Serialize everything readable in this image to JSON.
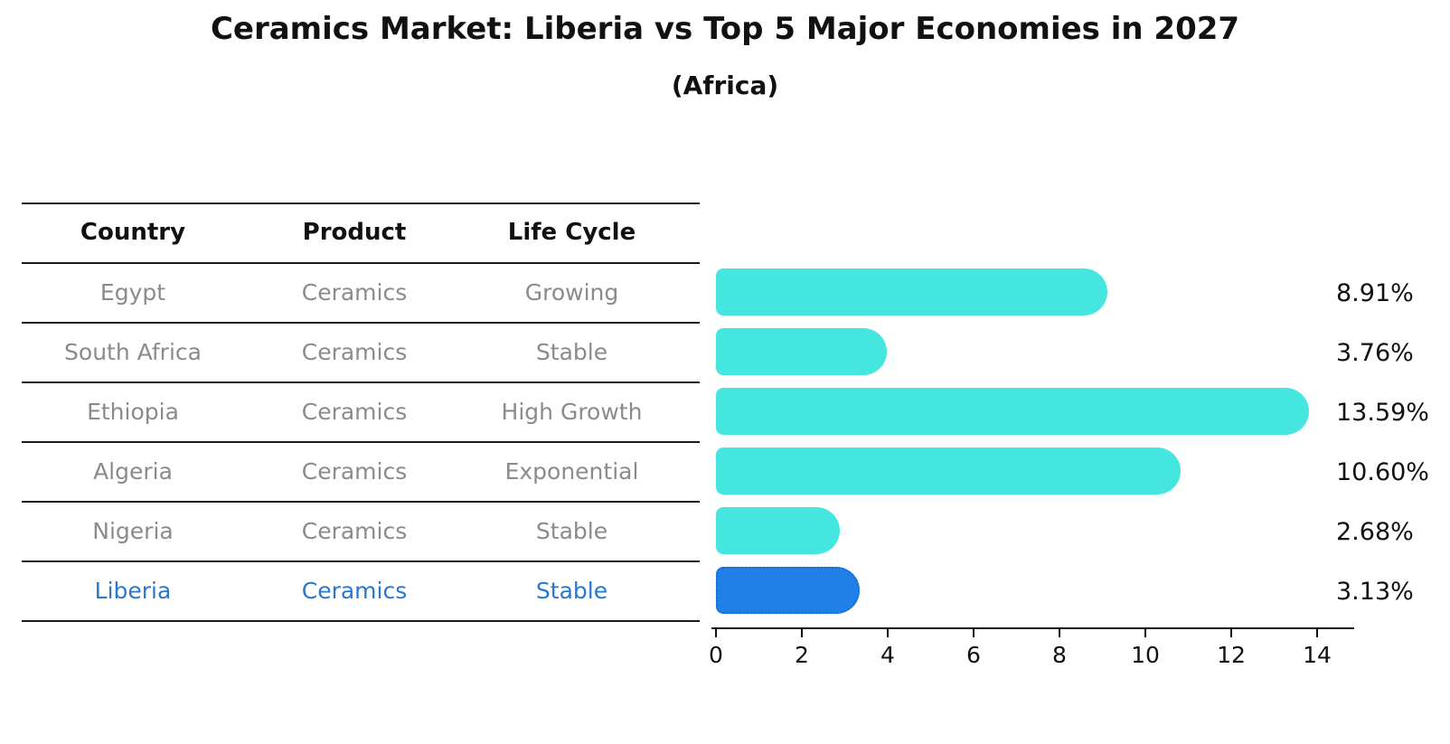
{
  "title": "Ceramics Market: Liberia vs Top 5 Major Economies in 2027",
  "subtitle": "(Africa)",
  "table": {
    "headers": [
      "Country",
      "Product",
      "Life Cycle"
    ],
    "highlight_text_color": "#2779CE",
    "rows": [
      {
        "country": "Egypt",
        "product": "Ceramics",
        "life_cycle": "Growing",
        "highlight": false
      },
      {
        "country": "South Africa",
        "product": "Ceramics",
        "life_cycle": "Stable",
        "highlight": false
      },
      {
        "country": "Ethiopia",
        "product": "Ceramics",
        "life_cycle": "High Growth",
        "highlight": false
      },
      {
        "country": "Algeria",
        "product": "Ceramics",
        "life_cycle": "Exponential",
        "highlight": false
      },
      {
        "country": "Nigeria",
        "product": "Ceramics",
        "life_cycle": "Stable",
        "highlight": false
      },
      {
        "country": "Liberia",
        "product": "Ceramics",
        "life_cycle": "Stable",
        "highlight": true
      }
    ]
  },
  "chart_data": {
    "type": "bar",
    "orientation": "horizontal",
    "title": "Ceramics Market: Liberia vs Top 5 Major Economies in 2027",
    "subtitle": "(Africa)",
    "categories": [
      "Egypt",
      "South Africa",
      "Ethiopia",
      "Algeria",
      "Nigeria",
      "Liberia"
    ],
    "values": [
      8.91,
      3.76,
      13.59,
      10.6,
      2.68,
      3.13
    ],
    "value_labels": [
      "8.91%",
      "3.76%",
      "13.59%",
      "10.60%",
      "2.68%",
      "3.13%"
    ],
    "x_ticks": [
      "0",
      "2",
      "4",
      "6",
      "8",
      "10",
      "12",
      "14"
    ],
    "xlim": [
      0,
      14
    ],
    "grid": false,
    "legend": "none",
    "bar_color": "#45E6E0",
    "highlight_index": 5,
    "highlight_color": "#2080E8",
    "highlight_border_color": "#1A6AD4",
    "highlight_border_style": "dotted"
  }
}
